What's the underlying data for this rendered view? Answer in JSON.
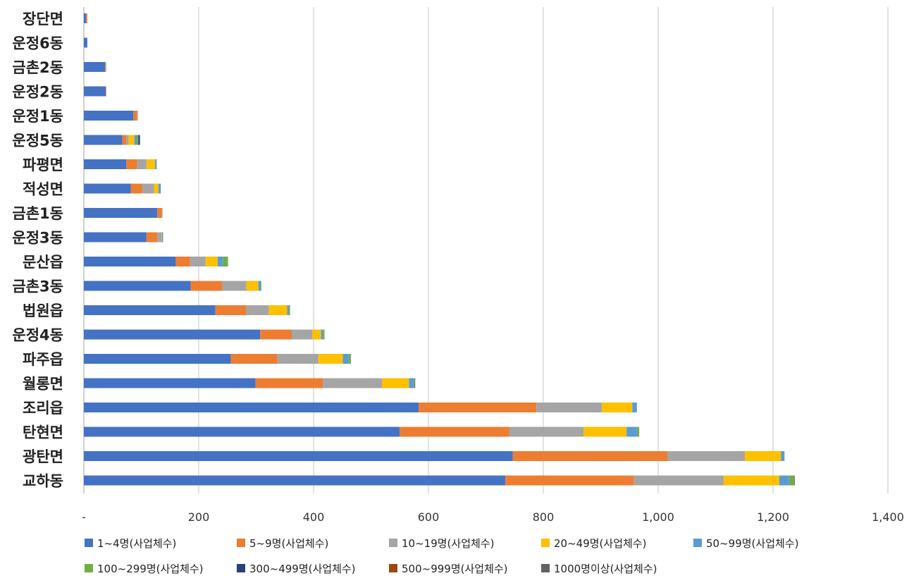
{
  "chart_data": {
    "type": "bar",
    "orientation": "horizontal",
    "stacked": true,
    "title": "",
    "xlabel": "",
    "ylabel": "",
    "xlim": [
      0,
      1400
    ],
    "x_ticks": [
      "-",
      "200",
      "400",
      "600",
      "800",
      "1,000",
      "1,200",
      "1,400"
    ],
    "grid": true,
    "legend_position": "bottom",
    "categories": [
      "장단면",
      "운정6동",
      "금촌2동",
      "운정2동",
      "운정1동",
      "운정5동",
      "파평면",
      "적성면",
      "금촌1동",
      "운정3동",
      "문산읍",
      "금촌3동",
      "법원읍",
      "운정4동",
      "파주읍",
      "월롱면",
      "조리읍",
      "탄현면",
      "광탄면",
      "교하동"
    ],
    "series": [
      {
        "name": "1~4명(사업체수)",
        "color": "#4472C4",
        "values": [
          4,
          6,
          37,
          38,
          86,
          67,
          74,
          82,
          128,
          109,
          160,
          186,
          229,
          307,
          256,
          299,
          583,
          550,
          747,
          734
        ]
      },
      {
        "name": "5~9명(사업체수)",
        "color": "#ED7D31",
        "values": [
          2,
          0,
          1,
          1,
          7,
          7,
          19,
          20,
          8,
          19,
          25,
          55,
          54,
          55,
          81,
          117,
          205,
          191,
          269,
          224
        ]
      },
      {
        "name": "10~19명(사업체수)",
        "color": "#A5A5A5",
        "values": [
          0,
          0,
          1,
          0,
          1,
          4,
          16,
          20,
          1,
          7,
          27,
          42,
          39,
          36,
          71,
          103,
          114,
          129,
          135,
          156
        ]
      },
      {
        "name": "20~49명(사업체수)",
        "color": "#FFC000",
        "values": [
          0,
          0,
          0,
          0,
          0,
          10,
          15,
          8,
          0,
          1,
          21,
          21,
          32,
          15,
          43,
          47,
          53,
          75,
          63,
          97
        ]
      },
      {
        "name": "50~99명(사업체수)",
        "color": "#5B9BD5",
        "values": [
          0,
          0,
          0,
          0,
          0,
          4,
          2,
          4,
          0,
          2,
          9,
          4,
          3,
          4,
          10,
          8,
          8,
          18,
          6,
          17
        ]
      },
      {
        "name": "100~299명(사업체수)",
        "color": "#70AD47",
        "values": [
          0,
          0,
          0,
          0,
          0,
          3,
          1,
          0,
          0,
          0,
          9,
          1,
          2,
          2,
          4,
          2,
          0,
          4,
          0,
          9
        ]
      },
      {
        "name": "300~499명(사업체수)",
        "color": "#264478",
        "values": [
          0,
          0,
          0,
          0,
          0,
          2,
          0,
          0,
          0,
          0,
          0,
          0,
          0,
          0,
          0,
          0,
          0,
          0,
          0,
          0
        ]
      },
      {
        "name": "500~999명(사업체수)",
        "color": "#9E480E",
        "values": [
          0,
          0,
          0,
          0,
          0,
          0,
          0,
          0,
          0,
          0,
          0,
          0,
          0,
          0,
          0,
          0,
          0,
          0,
          0,
          0
        ]
      },
      {
        "name": "1000명이상(사업체수)",
        "color": "#636363",
        "values": [
          0,
          0,
          0,
          0,
          0,
          1,
          0,
          0,
          0,
          0,
          0,
          0,
          0,
          0,
          0,
          1,
          0,
          0,
          0,
          1
        ]
      }
    ]
  }
}
